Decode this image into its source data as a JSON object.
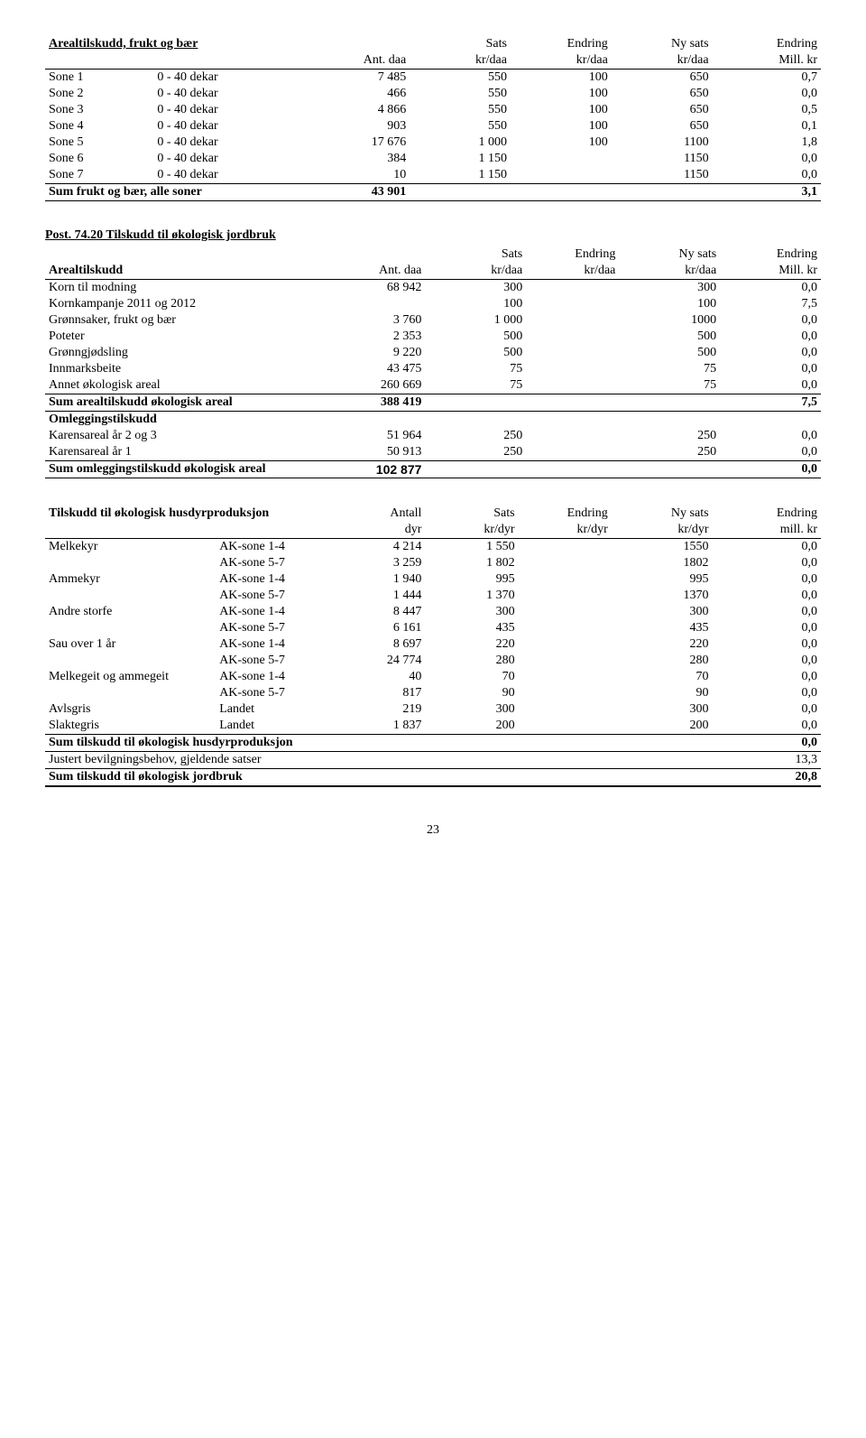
{
  "table1": {
    "title": "Arealtilskudd, frukt og bær",
    "headers": {
      "c2": "",
      "c3": "Ant. daa",
      "c4t": "Sats",
      "c4b": "kr/daa",
      "c5t": "Endring",
      "c5b": "kr/daa",
      "c6t": "Ny sats",
      "c6b": "kr/daa",
      "c7t": "Endring",
      "c7b": "Mill. kr"
    },
    "rows": [
      {
        "c1": "Sone 1",
        "c2": "0 - 40 dekar",
        "c3": "7 485",
        "c4": "550",
        "c5": "100",
        "c6": "650",
        "c7": "0,7"
      },
      {
        "c1": "Sone 2",
        "c2": "0 - 40 dekar",
        "c3": "466",
        "c4": "550",
        "c5": "100",
        "c6": "650",
        "c7": "0,0"
      },
      {
        "c1": "Sone 3",
        "c2": "0 - 40 dekar",
        "c3": "4 866",
        "c4": "550",
        "c5": "100",
        "c6": "650",
        "c7": "0,5"
      },
      {
        "c1": "Sone 4",
        "c2": "0 - 40 dekar",
        "c3": "903",
        "c4": "550",
        "c5": "100",
        "c6": "650",
        "c7": "0,1"
      },
      {
        "c1": "Sone 5",
        "c2": "0 - 40 dekar",
        "c3": "17 676",
        "c4": "1 000",
        "c5": "100",
        "c6": "1100",
        "c7": "1,8"
      },
      {
        "c1": "Sone 6",
        "c2": "0 - 40 dekar",
        "c3": "384",
        "c4": "1 150",
        "c5": "",
        "c6": "1150",
        "c7": "0,0"
      },
      {
        "c1": "Sone 7",
        "c2": "0 - 40 dekar",
        "c3": "10",
        "c4": "1 150",
        "c5": "",
        "c6": "1150",
        "c7": "0,0"
      }
    ],
    "sum": {
      "label": "Sum frukt og bær, alle soner",
      "c3": "43 901",
      "c7": "3,1"
    }
  },
  "table2": {
    "title": "Post. 74.20 Tilskudd til økologisk jordbruk",
    "headers": {
      "c1": "Arealtilskudd",
      "c2": "Ant. daa",
      "c3t": "Sats",
      "c3b": "kr/daa",
      "c4t": "Endring",
      "c4b": "kr/daa",
      "c5t": "Ny sats",
      "c5b": "kr/daa",
      "c6t": "Endring",
      "c6b": "Mill. kr"
    },
    "rows": [
      {
        "c1": "Korn til modning",
        "c2": "68 942",
        "c3": "300",
        "c4": "",
        "c5": "300",
        "c6": "0,0"
      },
      {
        "c1": "Kornkampanje 2011 og 2012",
        "c2": "",
        "c3": "100",
        "c4": "",
        "c5": "100",
        "c6": "7,5"
      },
      {
        "c1": "Grønnsaker, frukt og bær",
        "c2": "3 760",
        "c3": "1 000",
        "c4": "",
        "c5": "1000",
        "c6": "0,0"
      },
      {
        "c1": "Poteter",
        "c2": "2 353",
        "c3": "500",
        "c4": "",
        "c5": "500",
        "c6": "0,0"
      },
      {
        "c1": "Grønngjødsling",
        "c2": "9 220",
        "c3": "500",
        "c4": "",
        "c5": "500",
        "c6": "0,0"
      },
      {
        "c1": "Innmarksbeite",
        "c2": "43 475",
        "c3": "75",
        "c4": "",
        "c5": "75",
        "c6": "0,0"
      },
      {
        "c1": "Annet økologisk areal",
        "c2": "260 669",
        "c3": "75",
        "c4": "",
        "c5": "75",
        "c6": "0,0"
      }
    ],
    "sum1": {
      "label": "Sum arealtilskudd økologisk areal",
      "c2": "388 419",
      "c6": "7,5"
    },
    "omlegg": "Omleggingstilskudd",
    "rows2": [
      {
        "c1": "Karensareal år 2 og 3",
        "c2": "51 964",
        "c3": "250",
        "c4": "",
        "c5": "250",
        "c6": "0,0"
      },
      {
        "c1": "Karensareal år 1",
        "c2": "50 913",
        "c3": "250",
        "c4": "",
        "c5": "250",
        "c6": "0,0"
      }
    ],
    "sum2": {
      "label": "Sum omleggingstilskudd økologisk areal",
      "c2": "102 877",
      "c6": "0,0"
    }
  },
  "table3": {
    "headers": {
      "c1": "Tilskudd til økologisk husdyrproduksjon",
      "c3t": "Antall",
      "c3b": "dyr",
      "c4t": "Sats",
      "c4b": "kr/dyr",
      "c5t": "Endring",
      "c5b": "kr/dyr",
      "c6t": "Ny sats",
      "c6b": "kr/dyr",
      "c7t": "Endring",
      "c7b": "mill. kr"
    },
    "rows": [
      {
        "c1": "Melkekyr",
        "c2": "AK-sone 1-4",
        "c3": "4 214",
        "c4": "1 550",
        "c5": "",
        "c6": "1550",
        "c7": "0,0"
      },
      {
        "c1": "",
        "c2": "AK-sone 5-7",
        "c3": "3 259",
        "c4": "1 802",
        "c5": "",
        "c6": "1802",
        "c7": "0,0"
      },
      {
        "c1": "Ammekyr",
        "c2": "AK-sone 1-4",
        "c3": "1 940",
        "c4": "995",
        "c5": "",
        "c6": "995",
        "c7": "0,0"
      },
      {
        "c1": "",
        "c2": "AK-sone 5-7",
        "c3": "1 444",
        "c4": "1 370",
        "c5": "",
        "c6": "1370",
        "c7": "0,0"
      },
      {
        "c1": "Andre storfe",
        "c2": "AK-sone 1-4",
        "c3": "8 447",
        "c4": "300",
        "c5": "",
        "c6": "300",
        "c7": "0,0"
      },
      {
        "c1": "",
        "c2": "AK-sone 5-7",
        "c3": "6 161",
        "c4": "435",
        "c5": "",
        "c6": "435",
        "c7": "0,0"
      },
      {
        "c1": "Sau over 1 år",
        "c2": "AK-sone 1-4",
        "c3": "8 697",
        "c4": "220",
        "c5": "",
        "c6": "220",
        "c7": "0,0"
      },
      {
        "c1": "",
        "c2": "AK-sone 5-7",
        "c3": "24 774",
        "c4": "280",
        "c5": "",
        "c6": "280",
        "c7": "0,0"
      },
      {
        "c1": "Melkegeit og ammegeit",
        "c2": "AK-sone 1-4",
        "c3": "40",
        "c4": "70",
        "c5": "",
        "c6": "70",
        "c7": "0,0"
      },
      {
        "c1": "",
        "c2": "AK-sone 5-7",
        "c3": "817",
        "c4": "90",
        "c5": "",
        "c6": "90",
        "c7": "0,0"
      },
      {
        "c1": "Avlsgris",
        "c2": "Landet",
        "c3": "219",
        "c4": "300",
        "c5": "",
        "c6": "300",
        "c7": "0,0"
      },
      {
        "c1": "Slaktegris",
        "c2": "Landet",
        "c3": "1 837",
        "c4": "200",
        "c5": "",
        "c6": "200",
        "c7": "0,0"
      }
    ],
    "sum1": {
      "label": "Sum tilskudd til økologisk husdyrproduksjon",
      "c7": "0,0"
    },
    "sum2": {
      "label": "Justert bevilgningsbehov, gjeldende satser",
      "c7": "13,3"
    },
    "sum3": {
      "label": "Sum tilskudd til økologisk jordbruk",
      "c7": "20,8"
    }
  },
  "pageNum": "23"
}
